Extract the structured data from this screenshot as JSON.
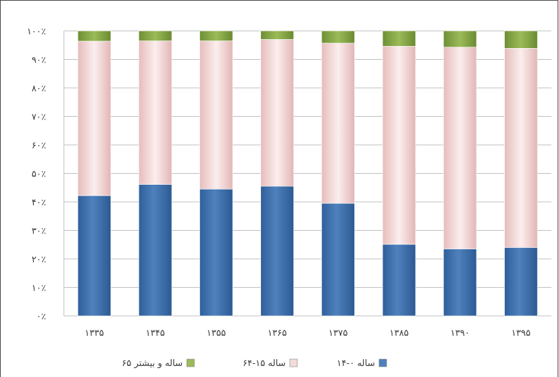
{
  "chart_data": {
    "type": "bar",
    "stacked": true,
    "percent": true,
    "categories": [
      "۱۳۳۵",
      "۱۳۴۵",
      "۱۳۵۵",
      "۱۳۶۵",
      "۱۳۷۵",
      "۱۳۸۵",
      "۱۳۹۰",
      "۱۳۹۵"
    ],
    "y_ticks": [
      "۰٪",
      "۱۰٪",
      "۲۰٪",
      "۳۰٪",
      "۴۰٪",
      "۵۰٪",
      "۶۰٪",
      "۷۰٪",
      "۸۰٪",
      "۹۰٪",
      "۱۰۰٪"
    ],
    "ylim": [
      0,
      100
    ],
    "grid": true,
    "legend_position": "bottom",
    "series": [
      {
        "name": "۱۴-۰ ساله",
        "color": "#4f81bd",
        "values": [
          42.2,
          46.1,
          44.5,
          45.5,
          39.5,
          25.1,
          23.5,
          24.0
        ]
      },
      {
        "name": "۶۴-۱۵ ساله",
        "color": "#f2dcdb",
        "values": [
          54.2,
          50.4,
          52.0,
          51.5,
          56.2,
          69.5,
          70.8,
          69.9
        ]
      },
      {
        "name": "۶۵ ساله و بیشتر",
        "color": "#9bbb59",
        "values": [
          3.6,
          3.5,
          3.5,
          3.0,
          4.3,
          5.4,
          5.7,
          6.1
        ]
      }
    ]
  }
}
